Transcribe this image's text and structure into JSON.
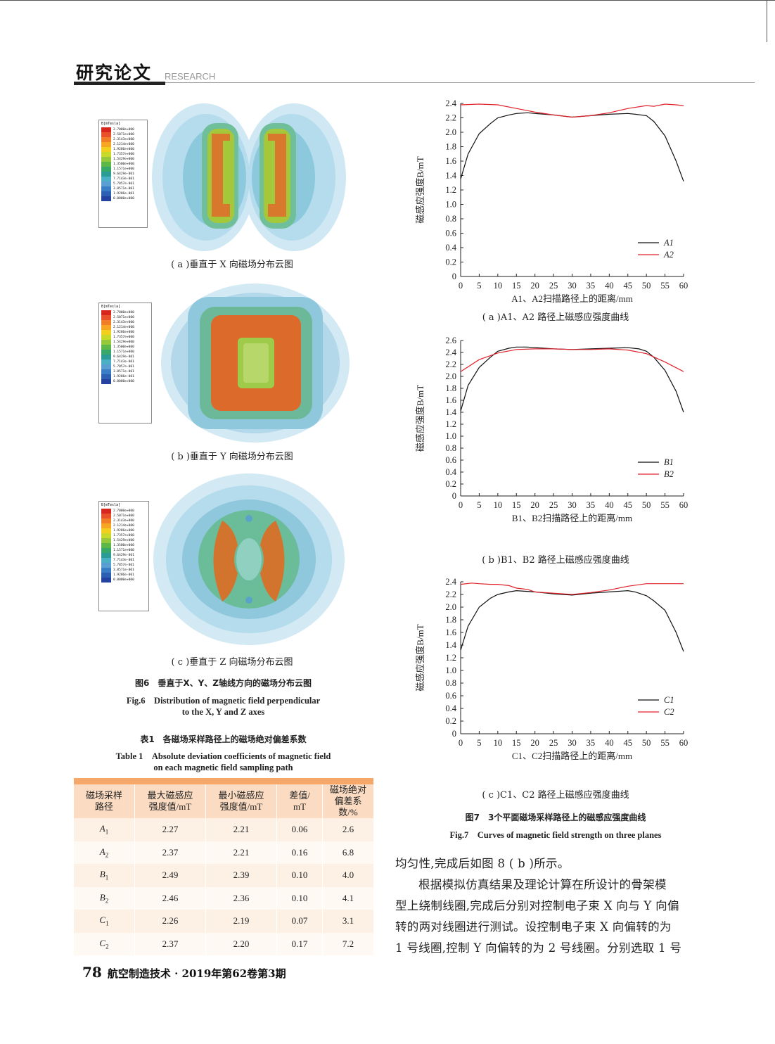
{
  "header": {
    "title": "研究论文",
    "subtitle": "RESEARCH"
  },
  "fig6": {
    "legend_title": "B[mTesla]",
    "legend_values_a": [
      "2.7000e+000",
      "2.5071e+000",
      "2.3143e+000",
      "2.1214e+000",
      "1.9286e+000",
      "1.7357e+000",
      "1.5429e+000",
      "1.3500e+000",
      "1.1571e+000",
      "9.6429e-001",
      "7.7143e-001",
      "5.7857e-001",
      "3.8571e-001",
      "1.9286e-001",
      "0.0000e+000"
    ],
    "legend_values_b": [
      "2.7000e+000",
      "2.5071e+000",
      "2.3143e+000",
      "2.1214e+000",
      "1.9286e+000",
      "1.7357e+000",
      "1.5429e+000",
      "1.3500e+000",
      "1.1571e+000",
      "9.6429e-001",
      "7.7143e-001",
      "5.7857e-001",
      "3.8571e-001",
      "1.9286e-001",
      "0.0000e+000"
    ],
    "legend_values_c": [
      "2.7000e+000",
      "2.5071e+000",
      "2.3143e+000",
      "2.1214e+000",
      "1.9286e+000",
      "1.7357e+000",
      "1.5429e+000",
      "1.3500e+000",
      "1.1571e+000",
      "9.6429e-001",
      "7.7143e-001",
      "5.7857e-001",
      "3.8571e-001",
      "1.9286e-001",
      "0.0000e+000"
    ],
    "legend_colors": [
      "#d7261e",
      "#e8512a",
      "#f07e26",
      "#f6a623",
      "#f2cf1d",
      "#c9d92a",
      "#95c83a",
      "#5db84a",
      "#37a86a",
      "#2a9c95",
      "#4bb0c4",
      "#5a9fd1",
      "#3a7fc6",
      "#2d5fb2",
      "#2442a0"
    ],
    "sub_a": "( a )垂直于 X 向磁场分布云图",
    "sub_b": "( b )垂直于 Y 向磁场分布云图",
    "sub_c": "( c )垂直于 Z 向磁场分布云图",
    "caption_cn": "图6　垂直于X、Y、Z轴线方向的磁场分布云图",
    "caption_en_1": "Fig.6　Distribution of magnetic field perpendicular",
    "caption_en_2": "to the X, Y and Z axes"
  },
  "table1": {
    "title_cn": "表1　各磁场采样路径上的磁场绝对偏差系数",
    "title_en_1": "Table 1　Absolute deviation coefficients of magnetic field",
    "title_en_2": "on each magnetic field sampling path",
    "headers": [
      [
        "磁场采样",
        "路径"
      ],
      [
        "最大磁感应",
        "强度值/mT"
      ],
      [
        "最小磁感应",
        "强度值/mT"
      ],
      [
        "差值/",
        "mT"
      ],
      [
        "磁场绝对",
        "偏差系数/%"
      ]
    ],
    "rows": [
      {
        "path": "A",
        "sub": "1",
        "max": "2.27",
        "min": "2.21",
        "diff": "0.06",
        "coef": "2.6"
      },
      {
        "path": "A",
        "sub": "2",
        "max": "2.37",
        "min": "2.21",
        "diff": "0.16",
        "coef": "6.8"
      },
      {
        "path": "B",
        "sub": "1",
        "max": "2.49",
        "min": "2.39",
        "diff": "0.10",
        "coef": "4.0"
      },
      {
        "path": "B",
        "sub": "2",
        "max": "2.46",
        "min": "2.36",
        "diff": "0.10",
        "coef": "4.1"
      },
      {
        "path": "C",
        "sub": "1",
        "max": "2.26",
        "min": "2.19",
        "diff": "0.07",
        "coef": "3.1"
      },
      {
        "path": "C",
        "sub": "2",
        "max": "2.37",
        "min": "2.20",
        "diff": "0.17",
        "coef": "7.2"
      }
    ]
  },
  "fig7": {
    "caption_cn": "图7　3个平面磁场采样路径上的磁感应强度曲线",
    "caption_en": "Fig.7　Curves of magnetic field strength on three planes"
  },
  "chart_data": [
    {
      "type": "line",
      "ylabel": "磁感应强度B/mT",
      "xlabel": "A1、A2扫描路径上的距离/mm",
      "subcaption": "( a )A1、A2 路径上磁感应强度曲线",
      "xlim": [
        0,
        60
      ],
      "ylim": [
        0,
        2.4
      ],
      "xticks": [
        0,
        5,
        10,
        15,
        20,
        25,
        30,
        35,
        40,
        45,
        50,
        55,
        60
      ],
      "yticks": [
        0,
        0.2,
        0.4,
        0.6,
        0.8,
        1.0,
        1.2,
        1.4,
        1.6,
        1.8,
        2.0,
        2.2,
        2.4
      ],
      "legend_position": "bottom-right",
      "series": [
        {
          "name": "A1",
          "color": "#111111",
          "x": [
            0,
            2,
            5,
            8,
            10,
            13,
            15,
            18,
            20,
            25,
            30,
            35,
            40,
            45,
            47,
            50,
            52,
            55,
            58,
            60
          ],
          "y": [
            1.35,
            1.7,
            1.98,
            2.12,
            2.2,
            2.24,
            2.26,
            2.27,
            2.26,
            2.24,
            2.21,
            2.23,
            2.25,
            2.26,
            2.25,
            2.23,
            2.15,
            1.95,
            1.6,
            1.32
          ]
        },
        {
          "name": "A2",
          "color": "#e0202a",
          "x": [
            0,
            5,
            10,
            15,
            20,
            25,
            30,
            35,
            40,
            45,
            50,
            52,
            55,
            58,
            60
          ],
          "y": [
            2.38,
            2.39,
            2.38,
            2.33,
            2.28,
            2.24,
            2.21,
            2.23,
            2.27,
            2.33,
            2.37,
            2.36,
            2.39,
            2.38,
            2.37
          ]
        }
      ]
    },
    {
      "type": "line",
      "ylabel": "磁感应强度B/mT",
      "xlabel": "B1、B2扫描路径上的距离/mm",
      "subcaption": "( b )B1、B2 路径上磁感应强度曲线",
      "xlim": [
        0,
        60
      ],
      "ylim": [
        0,
        2.6
      ],
      "xticks": [
        0,
        5,
        10,
        15,
        20,
        25,
        30,
        35,
        40,
        45,
        50,
        55,
        60
      ],
      "yticks": [
        0,
        0.2,
        0.4,
        0.6,
        0.8,
        1.0,
        1.2,
        1.4,
        1.6,
        1.8,
        2.0,
        2.2,
        2.4,
        2.6
      ],
      "legend_position": "bottom-right",
      "series": [
        {
          "name": "B1",
          "color": "#111111",
          "x": [
            0,
            2,
            5,
            8,
            10,
            13,
            15,
            18,
            20,
            25,
            30,
            35,
            40,
            45,
            48,
            50,
            52,
            55,
            58,
            60
          ],
          "y": [
            1.42,
            1.85,
            2.15,
            2.32,
            2.42,
            2.47,
            2.49,
            2.49,
            2.48,
            2.46,
            2.45,
            2.46,
            2.47,
            2.48,
            2.46,
            2.42,
            2.32,
            2.1,
            1.75,
            1.4
          ]
        },
        {
          "name": "B2",
          "color": "#e0202a",
          "x": [
            0,
            5,
            10,
            15,
            20,
            25,
            30,
            35,
            40,
            45,
            50,
            55,
            60
          ],
          "y": [
            2.08,
            2.28,
            2.39,
            2.45,
            2.46,
            2.46,
            2.45,
            2.45,
            2.46,
            2.44,
            2.38,
            2.24,
            2.08
          ]
        }
      ]
    },
    {
      "type": "line",
      "ylabel": "磁感应强度B/mT",
      "xlabel": "C1、C2扫描路径上的距离/mm",
      "subcaption": "( c )C1、C2 路径上磁感应强度曲线",
      "xlim": [
        0,
        60
      ],
      "ylim": [
        0,
        2.4
      ],
      "xticks": [
        0,
        5,
        10,
        15,
        20,
        25,
        30,
        35,
        40,
        45,
        50,
        55,
        60
      ],
      "yticks": [
        0,
        0.2,
        0.4,
        0.6,
        0.8,
        1.0,
        1.2,
        1.4,
        1.6,
        1.8,
        2.0,
        2.2,
        2.4
      ],
      "legend_position": "bottom-right",
      "series": [
        {
          "name": "C1",
          "color": "#111111",
          "x": [
            0,
            2,
            5,
            8,
            10,
            13,
            15,
            20,
            25,
            30,
            35,
            40,
            45,
            47,
            50,
            52,
            55,
            58,
            60
          ],
          "y": [
            1.32,
            1.7,
            2.0,
            2.14,
            2.2,
            2.24,
            2.26,
            2.24,
            2.21,
            2.19,
            2.22,
            2.24,
            2.26,
            2.24,
            2.18,
            2.1,
            1.95,
            1.6,
            1.3
          ]
        },
        {
          "name": "C2",
          "color": "#e0202a",
          "x": [
            0,
            3,
            5,
            8,
            10,
            13,
            15,
            18,
            20,
            25,
            30,
            35,
            40,
            45,
            50,
            55,
            60
          ],
          "y": [
            2.36,
            2.38,
            2.37,
            2.36,
            2.36,
            2.34,
            2.3,
            2.28,
            2.24,
            2.22,
            2.2,
            2.23,
            2.27,
            2.33,
            2.37,
            2.37,
            2.37
          ]
        }
      ]
    }
  ],
  "body": {
    "para1": "均匀性,完成后如图 8 ( b )所示。",
    "para2_l1": "根据模拟仿真结果及理论计算在所设计的骨架模",
    "para2_l2": "型上绕制线圈,完成后分别对控制电子束 X 向与 Y 向偏",
    "para2_l3": "转的两对线圈进行测试。设控制电子束 X 向偏转的为",
    "para2_l4": "1 号线圈,控制 Y 向偏转的为 2 号线圈。分别选取 1 号"
  },
  "footer": {
    "page": "78",
    "journal": "航空制造技术 · 2019年第62卷第3期"
  }
}
